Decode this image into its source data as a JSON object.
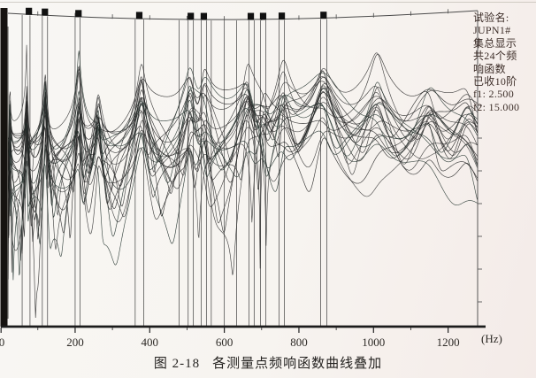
{
  "figure": {
    "caption_number": "图 2-18",
    "caption_title": "各测量点频响函数曲线叠加"
  },
  "info_panel": {
    "lines": [
      "试验名:",
      "JUPN1#",
      "集总显示",
      "共24个频",
      "响函数",
      "已收10阶",
      "f1: 2.500",
      "f2: 15.000"
    ]
  },
  "chart_data": {
    "type": "line",
    "title": "图 2-18 各测量点频响函数曲线叠加",
    "xlabel": "(Hz)",
    "x_range": [
      0,
      1280
    ],
    "x_ticks": [
      0,
      200,
      400,
      600,
      800,
      1000,
      1200
    ],
    "x_minor_tick_step": 100,
    "grid": false,
    "y_axis": "log magnitude, unlabeled; tick marks on right frame edge",
    "num_curves": 24,
    "series_description": "24 measurement-point frequency-response-function magnitude curves overlaid as thin dark lines",
    "resonance_peaks_hz": [
      25,
      70,
      120,
      210,
      262,
      378,
      508,
      545,
      662,
      705,
      758,
      865,
      1010,
      1150,
      1252
    ],
    "mode_marker_squares_hz": [
      76,
      119,
      209,
      372,
      510,
      545,
      671,
      704,
      754,
      866
    ],
    "mode_marker_lines_hz": [
      58,
      79,
      112,
      126,
      200,
      213,
      361,
      384,
      479,
      503,
      517,
      538,
      552,
      565,
      600,
      633,
      666,
      680,
      697,
      711,
      747,
      761,
      858,
      875
    ],
    "curve_color": "#262626",
    "marker_color": "#111111"
  }
}
